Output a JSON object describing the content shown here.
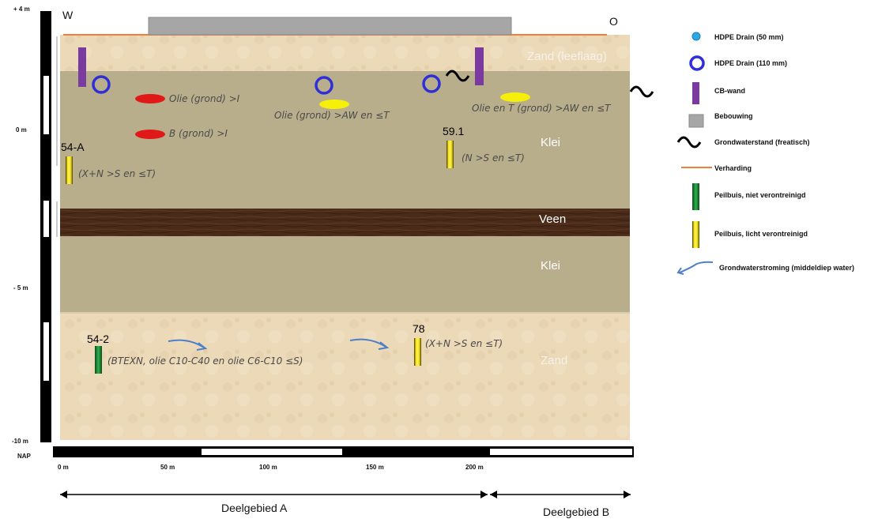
{
  "direction": {
    "west": "W",
    "east": "O"
  },
  "vertical_scale": {
    "ticks": [
      "+ 4 m",
      "0 m",
      "- 5 m",
      "-10 m"
    ],
    "datum": "NAP"
  },
  "horizontal_scale": {
    "ticks": [
      "0 m",
      "50 m",
      "100 m",
      "150 m",
      "200 m"
    ]
  },
  "layers": [
    {
      "name": "Zand (leeflaag)",
      "color": "#ead7b5"
    },
    {
      "name": "Klei",
      "color": "#b9ae8c"
    },
    {
      "name": "Veen",
      "color": "#4a2a19"
    },
    {
      "name": "Klei",
      "color": "#b9ae8c"
    },
    {
      "name": "Zand",
      "color": "#ead7b5"
    }
  ],
  "contamination_labels": [
    "Olie (grond) >I",
    "B (grond) >I",
    "Olie (grond) >AW en ≤T",
    "Olie en T (grond) >AW en ≤T"
  ],
  "tubes": [
    {
      "id": "54-A",
      "note": "(X+N >S en ≤T)"
    },
    {
      "id": "59.1",
      "note": "(N >S en ≤T)"
    },
    {
      "id": "54-2",
      "note": "(BTEXN, olie C10-C40 en olie C6-C10 ≤S)"
    },
    {
      "id": "78",
      "note": "(X+N >S en ≤T)"
    }
  ],
  "subareas": {
    "a": "Deelgebied A",
    "b": "Deelgebied B"
  },
  "legend": [
    {
      "label": "HDPE Drain (50 mm)",
      "icon": "small-drain-icon"
    },
    {
      "label": "HDPE Drain (110 mm)",
      "icon": "large-drain-icon"
    },
    {
      "label": "CB-wand",
      "icon": "cb-wall-icon"
    },
    {
      "label": "Bebouwing",
      "icon": "building-icon"
    },
    {
      "label": "Grondwaterstand (freatisch)",
      "icon": "groundwater-level-icon"
    },
    {
      "label": "Verharding",
      "icon": "pavement-icon"
    },
    {
      "label": "Peilbuis, niet verontreinigd",
      "icon": "green-tube-icon"
    },
    {
      "label": "Peilbuis, licht verontreinigd",
      "icon": "yellow-tube-icon"
    },
    {
      "label": "Grondwaterstroming (middeldiep water)",
      "icon": "flow-arrow-icon"
    }
  ],
  "colors": {
    "drain": "#2f2fd8",
    "small_drain": "#29a9e6",
    "cb_wall": "#7b3aa0",
    "building": "#a6a6a6",
    "pavement": "#f07e3c",
    "red_contamination": "#e01818",
    "yellow_contamination": "#f5ef0a",
    "tube_green": "#1f8f3a",
    "tube_yellow": "#e8d20a",
    "flow_arrow": "#4f7fc9"
  }
}
